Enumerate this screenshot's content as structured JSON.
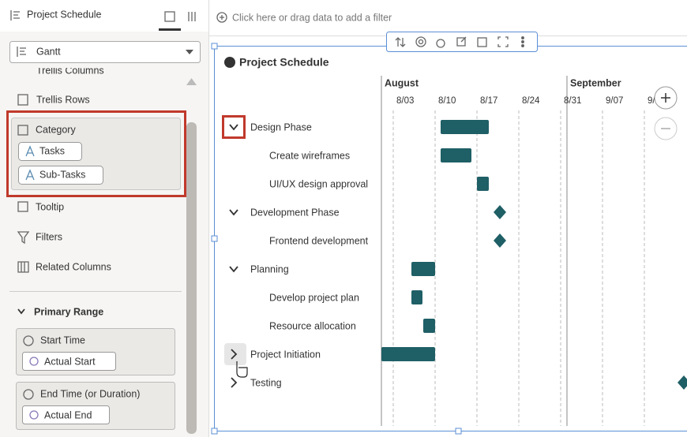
{
  "left_panel": {
    "title": "Project Schedule",
    "chart_type": "Gantt",
    "items": [
      "Trellis Columns",
      "Trellis Rows"
    ],
    "category": {
      "label": "Category",
      "chips": [
        "Tasks",
        "Sub-Tasks"
      ]
    },
    "more_items": [
      "Tooltip",
      "Filters",
      "Related Columns"
    ],
    "section": "Primary Range",
    "start": {
      "label": "Start Time",
      "chip": "Actual Start"
    },
    "end": {
      "label": "End Time (or Duration)",
      "chip": "Actual End"
    }
  },
  "filter_bar": "Click here or drag data to add a filter",
  "chart": {
    "title": "Project Schedule",
    "months": [
      "August",
      "September"
    ],
    "dates": [
      "8/03",
      "8/10",
      "8/17",
      "8/24",
      "8/31",
      "9/07",
      "9/"
    ],
    "phases": [
      {
        "label": "Design Phase",
        "tasks": [
          "Create wireframes",
          "UI/UX design approval"
        ]
      },
      {
        "label": "Development Phase",
        "tasks": [
          "Frontend development"
        ]
      },
      {
        "label": "Planning",
        "tasks": [
          "Develop project plan",
          "Resource allocation"
        ]
      },
      {
        "label": "Project Initiation",
        "tasks": []
      },
      {
        "label": "Testing",
        "tasks": []
      }
    ]
  }
}
